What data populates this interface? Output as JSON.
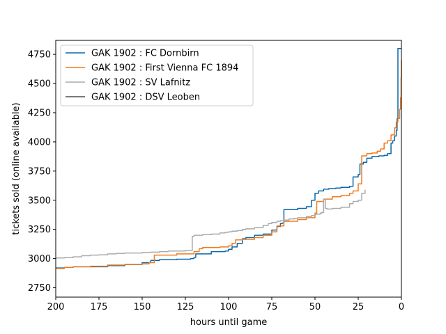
{
  "chart_data": {
    "type": "line",
    "title": "",
    "xlabel": "hours until game",
    "ylabel": "tickets sold (online available)",
    "xlim": [
      200,
      0
    ],
    "ylim": [
      2670,
      4870
    ],
    "x_reversed": true,
    "grid": false,
    "legend_position": "top-left",
    "x_ticks": [
      200,
      175,
      150,
      125,
      100,
      75,
      50,
      25,
      0
    ],
    "y_ticks": [
      2750,
      3000,
      3250,
      3500,
      3750,
      4000,
      4250,
      4500,
      4750
    ],
    "series": [
      {
        "name": "GAK 1902 : FC Dornbirn",
        "color": "#0868ac",
        "step": true,
        "x": [
          200,
          195,
          190,
          180,
          170,
          160,
          150,
          145,
          140,
          130,
          122,
          120,
          119,
          110,
          102,
          100,
          98,
          95,
          92,
          90,
          85,
          80,
          77,
          75,
          72,
          70,
          69,
          68,
          60,
          55,
          52,
          50,
          48,
          45,
          42,
          38,
          35,
          30,
          28,
          25,
          24,
          22,
          20,
          17,
          13,
          10,
          8,
          6,
          5,
          4,
          3,
          2.5,
          2,
          0
        ],
        "y": [
          2920,
          2925,
          2930,
          2930,
          2940,
          2950,
          2965,
          2985,
          2990,
          2995,
          3000,
          3010,
          3040,
          3060,
          3065,
          3080,
          3100,
          3130,
          3170,
          3180,
          3200,
          3210,
          3210,
          3245,
          3275,
          3300,
          3305,
          3420,
          3430,
          3445,
          3500,
          3560,
          3580,
          3595,
          3600,
          3605,
          3610,
          3620,
          3700,
          3720,
          3810,
          3825,
          3860,
          3875,
          3880,
          3885,
          3900,
          3990,
          4010,
          4050,
          4100,
          4200,
          4800,
          4800
        ]
      },
      {
        "name": "GAK 1902 : First Vienna FC 1894",
        "color": "#f07b1d",
        "step": true,
        "x": [
          200,
          195,
          190,
          180,
          170,
          160,
          150,
          146,
          143,
          130,
          120,
          117,
          115,
          105,
          100,
          98,
          96,
          92,
          85,
          80,
          75,
          72,
          68,
          60,
          55,
          50,
          49,
          45,
          40,
          35,
          30,
          28,
          25,
          23,
          20,
          17,
          14,
          12,
          10,
          8,
          6,
          4,
          3,
          2,
          1,
          0.5,
          0.2,
          0
        ],
        "y": [
          2915,
          2925,
          2930,
          2935,
          2945,
          2950,
          2955,
          2965,
          3030,
          3040,
          3060,
          3085,
          3095,
          3100,
          3110,
          3130,
          3160,
          3165,
          3180,
          3200,
          3230,
          3280,
          3320,
          3335,
          3350,
          3390,
          3490,
          3510,
          3530,
          3540,
          3560,
          3580,
          3640,
          3880,
          3900,
          3905,
          3920,
          3940,
          3990,
          4010,
          4060,
          4120,
          4170,
          4200,
          4280,
          4380,
          4550,
          4700
        ]
      },
      {
        "name": "GAK 1902 : SV Lafnitz",
        "color": "#aaaaaa",
        "step": true,
        "x": [
          200,
          195,
          190,
          185,
          180,
          175,
          170,
          165,
          160,
          150,
          145,
          140,
          135,
          125,
          121,
          120,
          115,
          110,
          105,
          102,
          100,
          98,
          95,
          92,
          90,
          85,
          80,
          77,
          75,
          72,
          70,
          68,
          65,
          62,
          60,
          55,
          52,
          50,
          47,
          46,
          45,
          44,
          43,
          40,
          35,
          30,
          28,
          25,
          23,
          21
        ],
        "y": [
          3005,
          3008,
          3015,
          3025,
          3030,
          3032,
          3040,
          3045,
          3048,
          3052,
          3055,
          3060,
          3065,
          3070,
          3190,
          3200,
          3205,
          3210,
          3220,
          3225,
          3230,
          3235,
          3240,
          3250,
          3255,
          3265,
          3285,
          3300,
          3310,
          3320,
          3325,
          3330,
          3340,
          3345,
          3350,
          3360,
          3370,
          3380,
          3390,
          3395,
          3510,
          3430,
          3425,
          3430,
          3440,
          3470,
          3490,
          3500,
          3560,
          3590
        ]
      },
      {
        "name": "GAK 1902 : DSV Leoben",
        "color": "#4d4d4d",
        "step": true,
        "x": [],
        "y": []
      }
    ]
  }
}
